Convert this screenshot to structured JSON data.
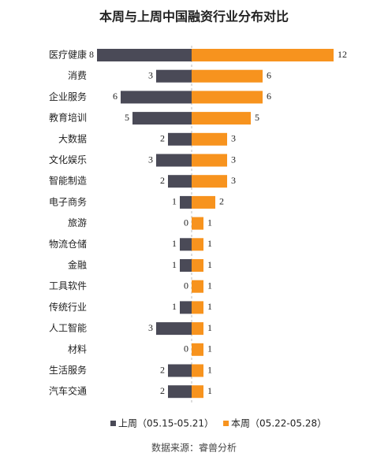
{
  "chart_data": {
    "type": "butterfly-bar",
    "title": "本周与上周中国融资行业分布对比",
    "categories": [
      "医疗健康",
      "消费",
      "企业服务",
      "教育培训",
      "大数据",
      "文化娱乐",
      "智能制造",
      "电子商务",
      "旅游",
      "物流仓储",
      "金融",
      "工具软件",
      "传统行业",
      "人工智能",
      "材料",
      "生活服务",
      "汽车交通"
    ],
    "series": [
      {
        "name": "上周（05.15-05.21）",
        "color": "#4a4a57",
        "side": "left",
        "values": [
          8,
          3,
          6,
          5,
          2,
          3,
          2,
          1,
          0,
          1,
          1,
          0,
          1,
          3,
          0,
          2,
          2
        ]
      },
      {
        "name": "本周（05.22-05.28）",
        "color": "#f7931e",
        "side": "right",
        "values": [
          12,
          6,
          6,
          5,
          3,
          3,
          3,
          2,
          1,
          1,
          1,
          1,
          1,
          1,
          1,
          1,
          1
        ]
      }
    ],
    "source": "数据来源：睿兽分析"
  }
}
